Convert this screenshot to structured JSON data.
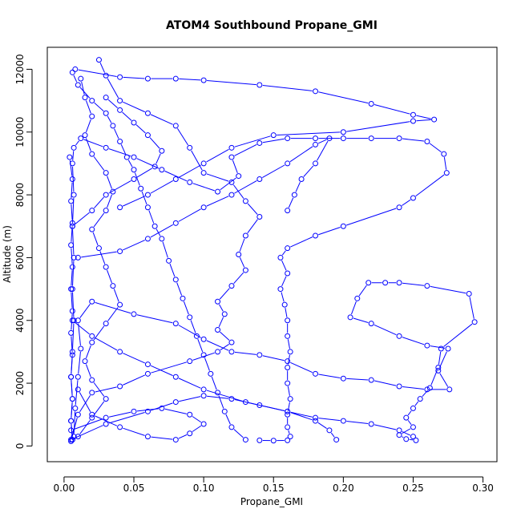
{
  "chart_data": {
    "type": "line",
    "title": "ATOM4 Southbound Propane_GMI",
    "xlabel": "Propane_GMI",
    "ylabel": "Altitude (m)",
    "xlim": [
      -0.012,
      0.31
    ],
    "ylim": [
      -500,
      12700
    ],
    "x_ticks": [
      0.0,
      0.05,
      0.1,
      0.15,
      0.2,
      0.25,
      0.3
    ],
    "x_tick_labels": [
      "0.00",
      "0.05",
      "0.10",
      "0.15",
      "0.20",
      "0.25",
      "0.30"
    ],
    "y_ticks": [
      0,
      2000,
      4000,
      6000,
      8000,
      10000,
      12000
    ],
    "y_tick_labels": [
      "0",
      "2000",
      "4000",
      "6000",
      "8000",
      "10000",
      "12000"
    ],
    "grid": false,
    "series_color": "#0000ff",
    "marker": "open-circle",
    "series": [
      {
        "points": [
          [
            0.006,
            200
          ],
          [
            0.005,
            800
          ],
          [
            0.006,
            1500
          ],
          [
            0.005,
            2200
          ],
          [
            0.006,
            3000
          ],
          [
            0.007,
            4000
          ],
          [
            0.006,
            5000
          ],
          [
            0.007,
            6000
          ],
          [
            0.006,
            7000
          ],
          [
            0.007,
            8000
          ],
          [
            0.006,
            9000
          ],
          [
            0.007,
            9500
          ],
          [
            0.012,
            9800
          ],
          [
            0.03,
            9500
          ],
          [
            0.05,
            9200
          ],
          [
            0.07,
            8800
          ],
          [
            0.09,
            8400
          ],
          [
            0.11,
            8100
          ],
          [
            0.125,
            8600
          ],
          [
            0.12,
            9200
          ],
          [
            0.14,
            9650
          ],
          [
            0.16,
            9800
          ],
          [
            0.18,
            9800
          ],
          [
            0.2,
            9800
          ],
          [
            0.22,
            9800
          ],
          [
            0.24,
            9800
          ],
          [
            0.26,
            9700
          ],
          [
            0.272,
            9300
          ],
          [
            0.274,
            8700
          ],
          [
            0.25,
            7900
          ],
          [
            0.24,
            7600
          ],
          [
            0.2,
            7000
          ],
          [
            0.18,
            6700
          ],
          [
            0.16,
            6300
          ],
          [
            0.155,
            6000
          ],
          [
            0.16,
            5500
          ],
          [
            0.155,
            5000
          ],
          [
            0.158,
            4500
          ],
          [
            0.16,
            4000
          ],
          [
            0.16,
            3500
          ],
          [
            0.162,
            3000
          ],
          [
            0.16,
            2500
          ],
          [
            0.16,
            2000
          ],
          [
            0.162,
            1500
          ],
          [
            0.16,
            1000
          ],
          [
            0.16,
            600
          ],
          [
            0.162,
            300
          ],
          [
            0.16,
            180
          ],
          [
            0.15,
            170
          ],
          [
            0.14,
            180
          ]
        ]
      },
      {
        "points": [
          [
            0.007,
            300
          ],
          [
            0.008,
            1200
          ],
          [
            0.01,
            2200
          ],
          [
            0.012,
            3100
          ],
          [
            0.01,
            4000
          ],
          [
            0.02,
            4600
          ],
          [
            0.05,
            4200
          ],
          [
            0.08,
            3900
          ],
          [
            0.1,
            3400
          ],
          [
            0.12,
            3000
          ],
          [
            0.14,
            2900
          ],
          [
            0.16,
            2700
          ],
          [
            0.18,
            2300
          ],
          [
            0.2,
            2150
          ],
          [
            0.22,
            2100
          ],
          [
            0.24,
            1900
          ],
          [
            0.26,
            1800
          ],
          [
            0.276,
            1800
          ],
          [
            0.268,
            2400
          ],
          [
            0.275,
            3100
          ],
          [
            0.26,
            3200
          ],
          [
            0.24,
            3500
          ],
          [
            0.22,
            3900
          ],
          [
            0.205,
            4100
          ],
          [
            0.21,
            4700
          ],
          [
            0.218,
            5200
          ],
          [
            0.23,
            5200
          ],
          [
            0.24,
            5200
          ],
          [
            0.26,
            5100
          ],
          [
            0.29,
            4850
          ],
          [
            0.294,
            3950
          ],
          [
            0.27,
            3100
          ],
          [
            0.268,
            2500
          ],
          [
            0.262,
            1850
          ],
          [
            0.255,
            1500
          ],
          [
            0.25,
            1200
          ],
          [
            0.245,
            900
          ],
          [
            0.25,
            600
          ],
          [
            0.24,
            350
          ],
          [
            0.245,
            220
          ],
          [
            0.252,
            180
          ]
        ]
      },
      {
        "points": [
          [
            0.005,
            150
          ],
          [
            0.01,
            1000
          ],
          [
            0.02,
            1700
          ],
          [
            0.04,
            1900
          ],
          [
            0.06,
            2300
          ],
          [
            0.09,
            2700
          ],
          [
            0.11,
            3000
          ],
          [
            0.12,
            3300
          ],
          [
            0.11,
            3700
          ],
          [
            0.115,
            4200
          ],
          [
            0.11,
            4600
          ],
          [
            0.12,
            5100
          ],
          [
            0.13,
            5600
          ],
          [
            0.125,
            6100
          ],
          [
            0.13,
            6700
          ],
          [
            0.14,
            7300
          ],
          [
            0.13,
            7800
          ],
          [
            0.12,
            8400
          ],
          [
            0.1,
            8700
          ],
          [
            0.09,
            9500
          ],
          [
            0.08,
            10200
          ],
          [
            0.06,
            10600
          ],
          [
            0.04,
            11000
          ],
          [
            0.03,
            11800
          ],
          [
            0.025,
            12300
          ]
        ]
      },
      {
        "points": [
          [
            0.006,
            11900
          ],
          [
            0.01,
            11500
          ],
          [
            0.02,
            11000
          ],
          [
            0.03,
            10600
          ],
          [
            0.035,
            10200
          ],
          [
            0.04,
            9700
          ],
          [
            0.045,
            9200
          ],
          [
            0.05,
            8800
          ],
          [
            0.055,
            8200
          ],
          [
            0.06,
            7600
          ],
          [
            0.065,
            7000
          ],
          [
            0.07,
            6600
          ],
          [
            0.075,
            5900
          ],
          [
            0.08,
            5300
          ],
          [
            0.085,
            4700
          ],
          [
            0.09,
            4100
          ],
          [
            0.095,
            3500
          ],
          [
            0.1,
            2900
          ],
          [
            0.105,
            2300
          ],
          [
            0.11,
            1700
          ],
          [
            0.115,
            1100
          ],
          [
            0.12,
            600
          ],
          [
            0.13,
            200
          ]
        ]
      },
      {
        "points": [
          [
            0.005,
            200
          ],
          [
            0.03,
            700
          ],
          [
            0.06,
            1100
          ],
          [
            0.08,
            1400
          ],
          [
            0.1,
            1600
          ],
          [
            0.12,
            1500
          ],
          [
            0.14,
            1300
          ],
          [
            0.16,
            1100
          ],
          [
            0.18,
            900
          ],
          [
            0.2,
            800
          ],
          [
            0.22,
            700
          ],
          [
            0.24,
            500
          ],
          [
            0.25,
            300
          ]
        ]
      },
      {
        "points": [
          [
            0.008,
            12000
          ],
          [
            0.04,
            11750
          ],
          [
            0.06,
            11700
          ],
          [
            0.08,
            11700
          ],
          [
            0.1,
            11650
          ],
          [
            0.14,
            11500
          ],
          [
            0.18,
            11300
          ],
          [
            0.22,
            10900
          ],
          [
            0.25,
            10550
          ],
          [
            0.265,
            10400
          ],
          [
            0.25,
            10350
          ],
          [
            0.2,
            10000
          ],
          [
            0.15,
            9900
          ],
          [
            0.12,
            9500
          ],
          [
            0.1,
            9000
          ],
          [
            0.08,
            8500
          ],
          [
            0.06,
            8000
          ],
          [
            0.04,
            7600
          ]
        ]
      },
      {
        "points": [
          [
            0.005,
            500
          ],
          [
            0.03,
            900
          ],
          [
            0.05,
            1100
          ],
          [
            0.07,
            1200
          ],
          [
            0.09,
            1000
          ],
          [
            0.1,
            700
          ],
          [
            0.09,
            400
          ],
          [
            0.08,
            200
          ],
          [
            0.06,
            300
          ],
          [
            0.04,
            600
          ],
          [
            0.02,
            1000
          ],
          [
            0.01,
            1800
          ]
        ]
      },
      {
        "points": [
          [
            0.01,
            6000
          ],
          [
            0.04,
            6200
          ],
          [
            0.06,
            6600
          ],
          [
            0.08,
            7100
          ],
          [
            0.1,
            7600
          ],
          [
            0.12,
            8000
          ],
          [
            0.14,
            8500
          ],
          [
            0.16,
            9000
          ],
          [
            0.18,
            9600
          ],
          [
            0.19,
            9800
          ],
          [
            0.18,
            9000
          ],
          [
            0.17,
            8500
          ],
          [
            0.165,
            8000
          ],
          [
            0.16,
            7500
          ]
        ]
      },
      {
        "points": [
          [
            0.006,
            4000
          ],
          [
            0.02,
            3500
          ],
          [
            0.04,
            3000
          ],
          [
            0.06,
            2600
          ],
          [
            0.08,
            2200
          ],
          [
            0.1,
            1800
          ],
          [
            0.13,
            1400
          ],
          [
            0.16,
            1100
          ],
          [
            0.18,
            800
          ],
          [
            0.19,
            500
          ],
          [
            0.195,
            200
          ]
        ]
      },
      {
        "points": [
          [
            0.006,
            7000
          ],
          [
            0.02,
            7500
          ],
          [
            0.03,
            8000
          ],
          [
            0.05,
            8500
          ],
          [
            0.065,
            8900
          ],
          [
            0.07,
            9400
          ],
          [
            0.06,
            9900
          ],
          [
            0.05,
            10300
          ],
          [
            0.04,
            10700
          ],
          [
            0.03,
            11100
          ]
        ]
      },
      {
        "points": [
          [
            0.004,
            9200
          ],
          [
            0.006,
            8500
          ],
          [
            0.005,
            7800
          ],
          [
            0.006,
            7100
          ],
          [
            0.005,
            6400
          ],
          [
            0.006,
            5700
          ],
          [
            0.005,
            5000
          ],
          [
            0.006,
            4300
          ],
          [
            0.005,
            3600
          ],
          [
            0.006,
            2900
          ],
          [
            0.005,
            2200
          ],
          [
            0.006,
            1500
          ],
          [
            0.005,
            800
          ],
          [
            0.006,
            200
          ]
        ]
      },
      {
        "points": [
          [
            0.01,
            300
          ],
          [
            0.02,
            900
          ],
          [
            0.03,
            1500
          ],
          [
            0.02,
            2100
          ],
          [
            0.015,
            2700
          ],
          [
            0.02,
            3300
          ],
          [
            0.03,
            3900
          ],
          [
            0.04,
            4500
          ],
          [
            0.035,
            5100
          ],
          [
            0.03,
            5700
          ],
          [
            0.025,
            6300
          ],
          [
            0.02,
            6900
          ],
          [
            0.03,
            7500
          ],
          [
            0.035,
            8100
          ],
          [
            0.03,
            8700
          ],
          [
            0.02,
            9300
          ],
          [
            0.015,
            9900
          ],
          [
            0.02,
            10500
          ],
          [
            0.015,
            11100
          ],
          [
            0.012,
            11700
          ]
        ]
      }
    ]
  }
}
